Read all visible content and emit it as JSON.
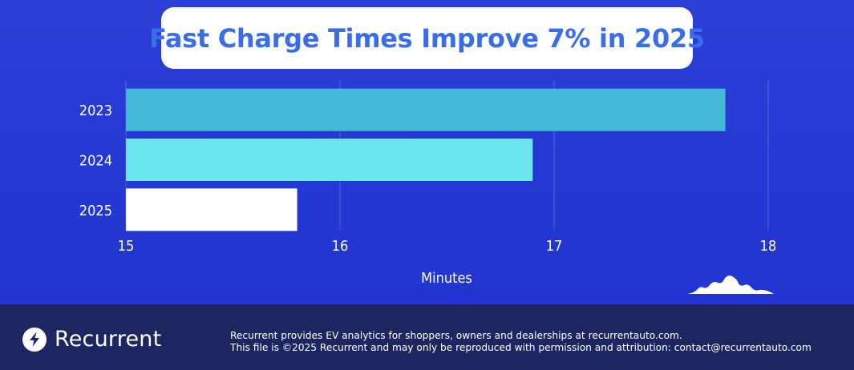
{
  "title": "Fast Charge Times Improve 7% in 2025",
  "chart_data": {
    "type": "bar",
    "orientation": "horizontal",
    "title": "Fast Charge Times Improve 7% in 2025",
    "categories": [
      "2023",
      "2024",
      "2025"
    ],
    "values": [
      17.8,
      16.9,
      15.8
    ],
    "bar_colors": [
      "#45b8d8",
      "#6ce6ee",
      "#ffffff"
    ],
    "xlabel": "Minutes",
    "ylabel": "",
    "xlim": [
      15,
      18
    ],
    "xticks": [
      "15",
      "16",
      "17",
      "18"
    ],
    "grid": "vertical"
  },
  "brand": {
    "name": "Recurrent",
    "icon": "lightning-bolt-icon"
  },
  "footer": {
    "line1": "Recurrent provides EV analytics for shoppers, owners and dealerships at recurrentauto.com.",
    "line2": "This file is ©2025 Recurrent and may only be reproduced with permission and attribution: contact@recurrentauto.com"
  },
  "colors": {
    "background": "#2438d4",
    "title": "#3a6ee8",
    "footer": "#1d2660"
  }
}
